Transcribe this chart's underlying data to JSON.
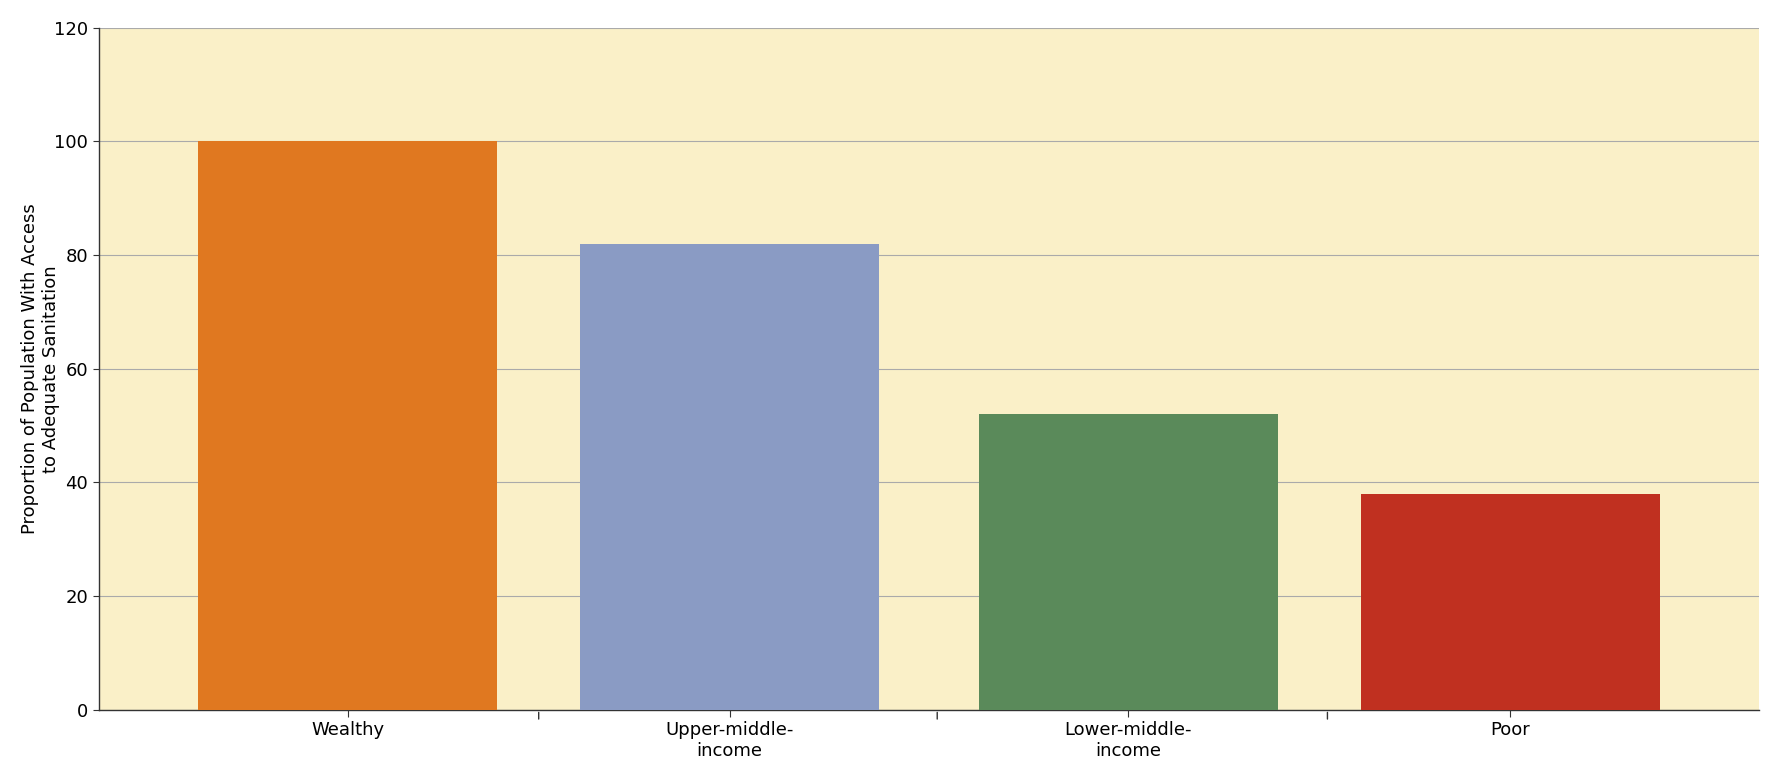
{
  "categories": [
    "Wealthy",
    "Upper-middle-\nincome",
    "Lower-middle-\nincome",
    "Poor"
  ],
  "values": [
    100,
    82,
    52,
    38
  ],
  "bar_colors": [
    "#E07820",
    "#8A9BC4",
    "#5A8A5A",
    "#C03020"
  ],
  "plot_bg_color": "#FAF0C8",
  "fig_bg_color": "#FFFFFF",
  "ylabel": "Proportion of Population With Access\nto Adequate Sanitation",
  "ylim": [
    0,
    120
  ],
  "yticks": [
    0,
    20,
    40,
    60,
    80,
    100,
    120
  ],
  "grid_color": "#AAAAAA",
  "bar_width": 0.18,
  "ylabel_fontsize": 13,
  "tick_fontsize": 13,
  "spine_color": "#333333"
}
